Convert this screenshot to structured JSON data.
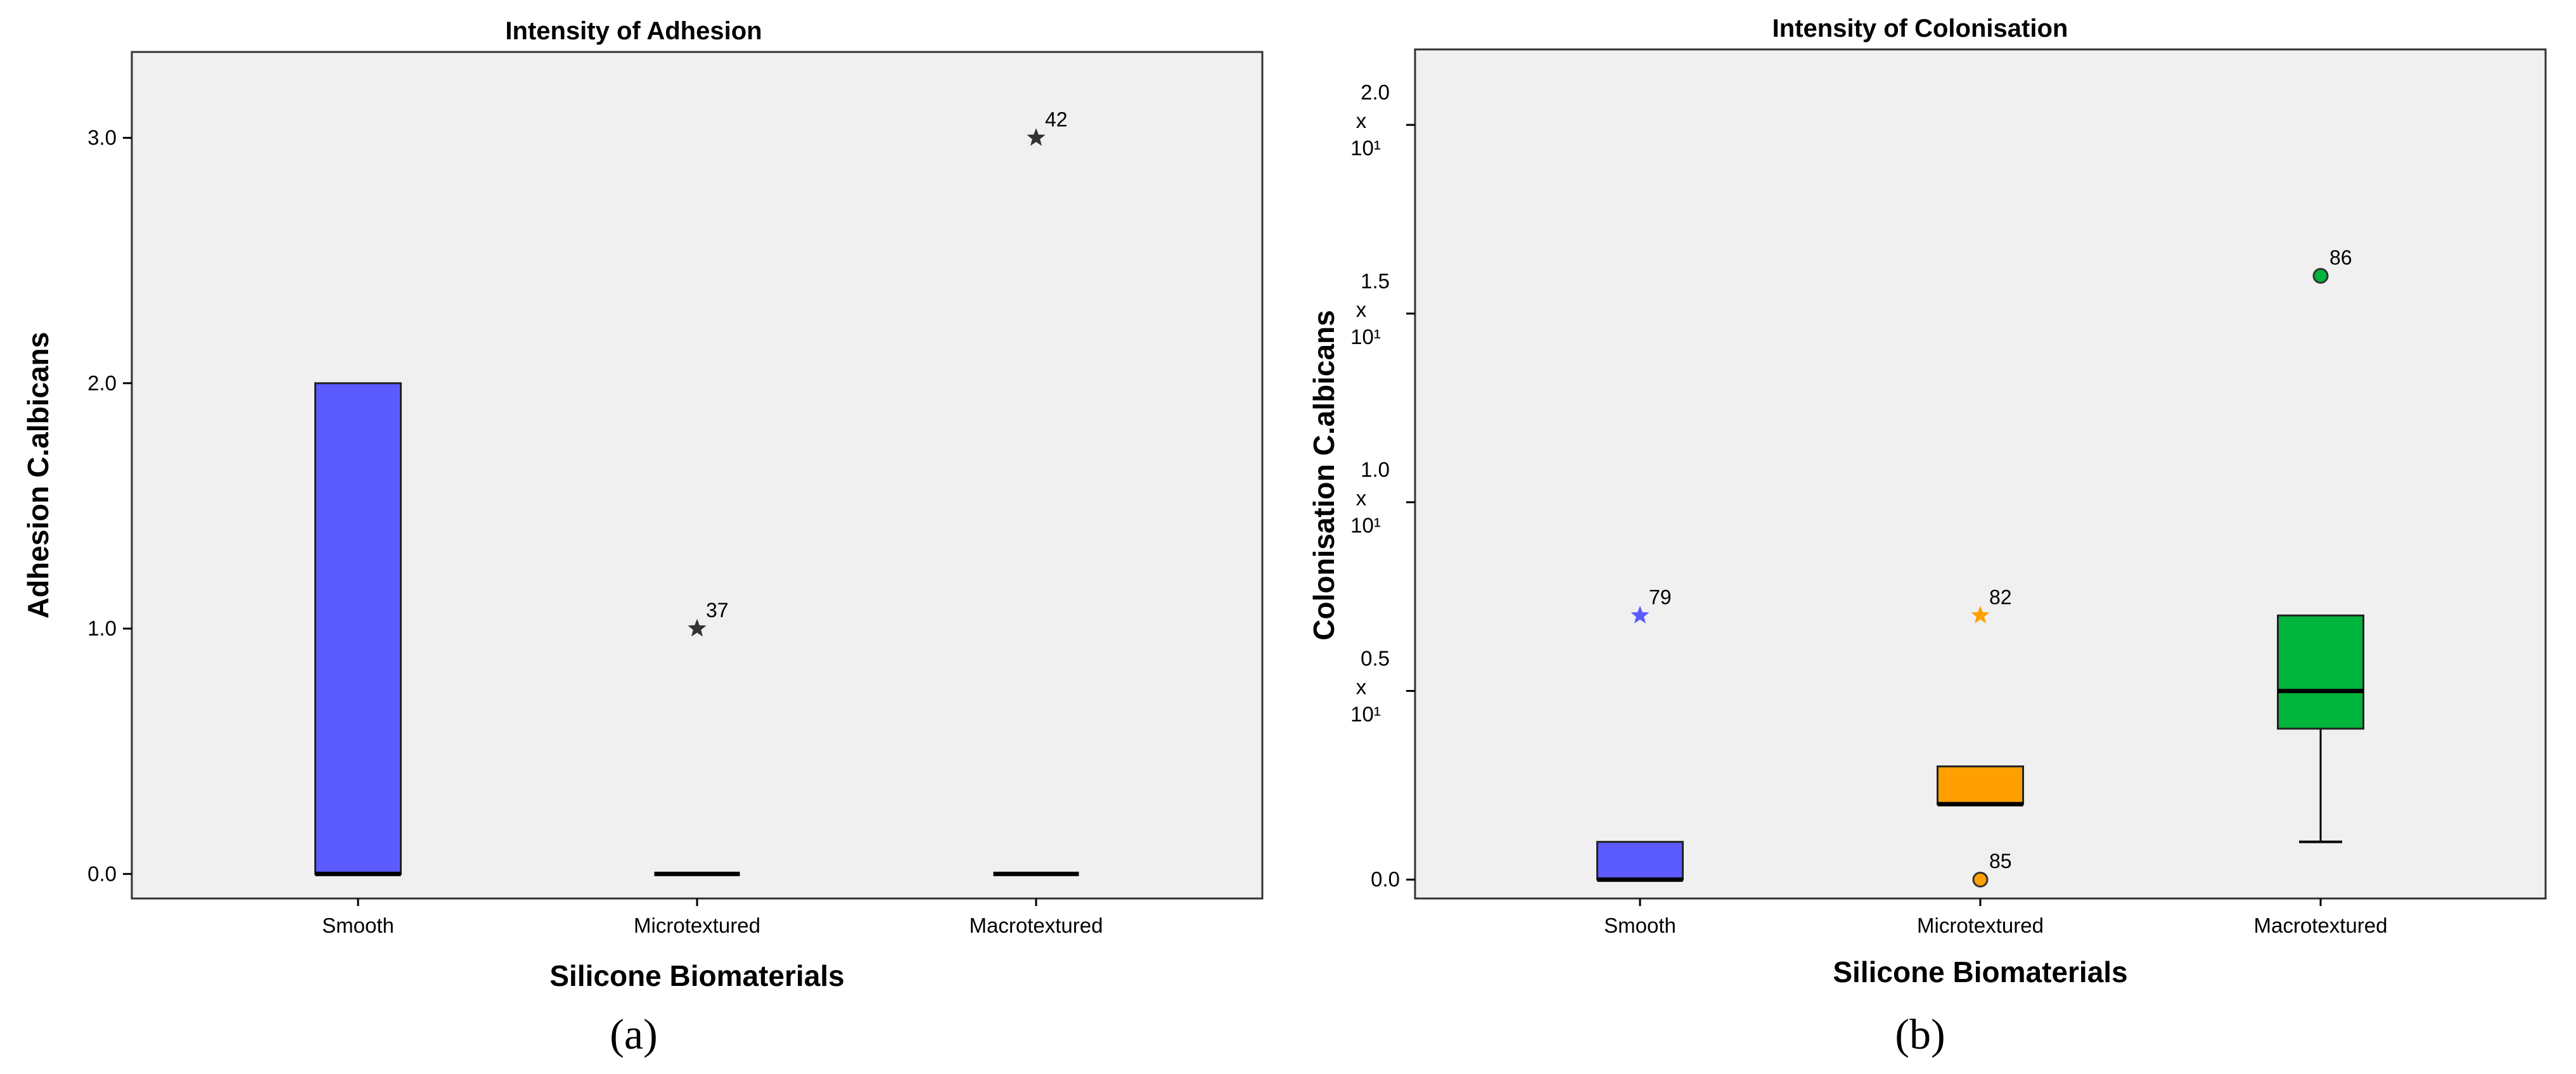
{
  "chart_data": [
    {
      "type": "boxplot",
      "panel_label": "(a)",
      "title": "Intensity of Adhesion",
      "xlabel": "Silicone Biomaterials",
      "ylabel": "Adhesion C.albicans",
      "ylim": [
        -0.1,
        3.35
      ],
      "yticks": [
        {
          "value": 0,
          "label": "0.0"
        },
        {
          "value": 1,
          "label": "1.0"
        },
        {
          "value": 2,
          "label": "2.0"
        },
        {
          "value": 3,
          "label": "3.0"
        }
      ],
      "grid": false,
      "categories": [
        "Smooth",
        "Microtextured",
        "Macrotextured"
      ],
      "boxes": [
        {
          "category": "Smooth",
          "q1": 0,
          "median": 0,
          "q3": 2,
          "whisker_low": 0,
          "whisker_high": 2,
          "color": "#5b5bff"
        },
        {
          "category": "Microtextured",
          "q1": 0,
          "median": 0,
          "q3": 0,
          "whisker_low": 0,
          "whisker_high": 0,
          "color": "#5b5bff"
        },
        {
          "category": "Macrotextured",
          "q1": 0,
          "median": 0,
          "q3": 0,
          "whisker_low": 0,
          "whisker_high": 0,
          "color": "#5b5bff"
        }
      ],
      "outliers": [
        {
          "category": "Microtextured",
          "value": 1.0,
          "label": "37",
          "marker": "star",
          "color": "#333333"
        },
        {
          "category": "Macrotextured",
          "value": 3.0,
          "label": "42",
          "marker": "star",
          "color": "#333333"
        }
      ]
    },
    {
      "type": "boxplot",
      "panel_label": "(b)",
      "title": "Intensity of Colonisation",
      "xlabel": "Silicone Biomaterials",
      "ylabel": "Colonisation C.albicans",
      "ylim": [
        -0.05,
        2.2
      ],
      "yticks": [
        {
          "value": 0,
          "label": "0.0",
          "multiplier": ""
        },
        {
          "value": 0.5,
          "label": "0.5",
          "multiplier": "x",
          "power": "10¹"
        },
        {
          "value": 1.0,
          "label": "1.0",
          "multiplier": "x",
          "power": "10¹"
        },
        {
          "value": 1.5,
          "label": "1.5",
          "multiplier": "x",
          "power": "10¹"
        },
        {
          "value": 2.0,
          "label": "2.0",
          "multiplier": "x",
          "power": "10¹"
        }
      ],
      "grid": false,
      "categories": [
        "Smooth",
        "Microtextured",
        "Macrotextured"
      ],
      "boxes": [
        {
          "category": "Smooth",
          "q1": 0,
          "median": 0,
          "q3": 0.1,
          "whisker_low": 0,
          "whisker_high": 0.1,
          "color": "#5b5bff"
        },
        {
          "category": "Microtextured",
          "q1": 0.2,
          "median": 0.2,
          "q3": 0.3,
          "whisker_low": 0.2,
          "whisker_high": 0.3,
          "color": "#ff9f00"
        },
        {
          "category": "Macrotextured",
          "q1": 0.4,
          "median": 0.5,
          "q3": 0.7,
          "whisker_low": 0.1,
          "whisker_high": 0.7,
          "color": "#00b53c"
        }
      ],
      "outliers": [
        {
          "category": "Smooth",
          "value": 0.7,
          "label": "79",
          "marker": "star",
          "color": "#5b5bff"
        },
        {
          "category": "Microtextured",
          "value": 0.7,
          "label": "82",
          "marker": "star",
          "color": "#ff9f00"
        },
        {
          "category": "Microtextured",
          "value": 0.0,
          "label": "85",
          "marker": "circle",
          "color": "#ff9f00"
        },
        {
          "category": "Macrotextured",
          "value": 1.6,
          "label": "86",
          "marker": "circle",
          "color": "#00b53c"
        }
      ]
    }
  ]
}
